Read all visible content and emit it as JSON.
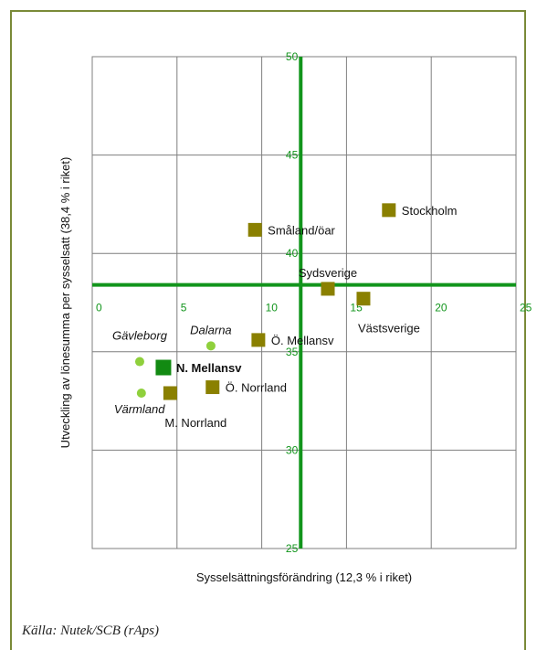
{
  "chart_data": {
    "type": "scatter",
    "xlabel": "Sysselsättningsförändring (12,3 % i riket)",
    "ylabel": "Utveckling av lönesumma per sysselsatt (38,4 % i riket)",
    "xlim": [
      0,
      25
    ],
    "ylim": [
      25,
      50
    ],
    "x_ticks": [
      "0",
      "5",
      "10",
      "15",
      "20",
      "25"
    ],
    "y_ticks": [
      "25",
      "30",
      "35",
      "40",
      "45",
      "50"
    ],
    "grid": true,
    "reference_lines": {
      "x": 12.3,
      "y": 38.4
    },
    "points": [
      {
        "label": "Stockholm",
        "x": 17.5,
        "y": 42.2,
        "kind": "region",
        "label_pos": "right"
      },
      {
        "label": "Småland/öar",
        "x": 9.6,
        "y": 41.2,
        "kind": "region",
        "label_pos": "right"
      },
      {
        "label": "Sydsverige",
        "x": 13.9,
        "y": 38.2,
        "kind": "region",
        "label_pos": "above"
      },
      {
        "label": "Västsverige",
        "x": 16.0,
        "y": 37.7,
        "kind": "region",
        "label_pos": "below-right"
      },
      {
        "label": "Ö. Mellansv",
        "x": 9.8,
        "y": 35.6,
        "kind": "region",
        "label_pos": "right"
      },
      {
        "label": "N. Mellansv",
        "x": 4.2,
        "y": 34.2,
        "kind": "highlight",
        "label_pos": "right"
      },
      {
        "label": "Ö. Norrland",
        "x": 7.1,
        "y": 33.2,
        "kind": "region",
        "label_pos": "right"
      },
      {
        "label": "M. Norrland",
        "x": 4.6,
        "y": 32.9,
        "kind": "region",
        "label_pos": "below-right"
      },
      {
        "label": "Dalarna",
        "x": 7.0,
        "y": 35.3,
        "kind": "county",
        "label_pos": "above"
      },
      {
        "label": "Gävleborg",
        "x": 2.8,
        "y": 34.5,
        "kind": "county",
        "label_pos": "above-left"
      },
      {
        "label": "Värmland",
        "x": 2.9,
        "y": 32.9,
        "kind": "county",
        "label_pos": "below-left"
      }
    ],
    "colors": {
      "region": "#8a8000",
      "highlight": "#128a12",
      "county": "#8fd03c",
      "reference": "#12951c",
      "grid": "#7f7f7f",
      "border": "#7a8a38"
    }
  },
  "source": "Källa: Nutek/SCB (rAps)"
}
